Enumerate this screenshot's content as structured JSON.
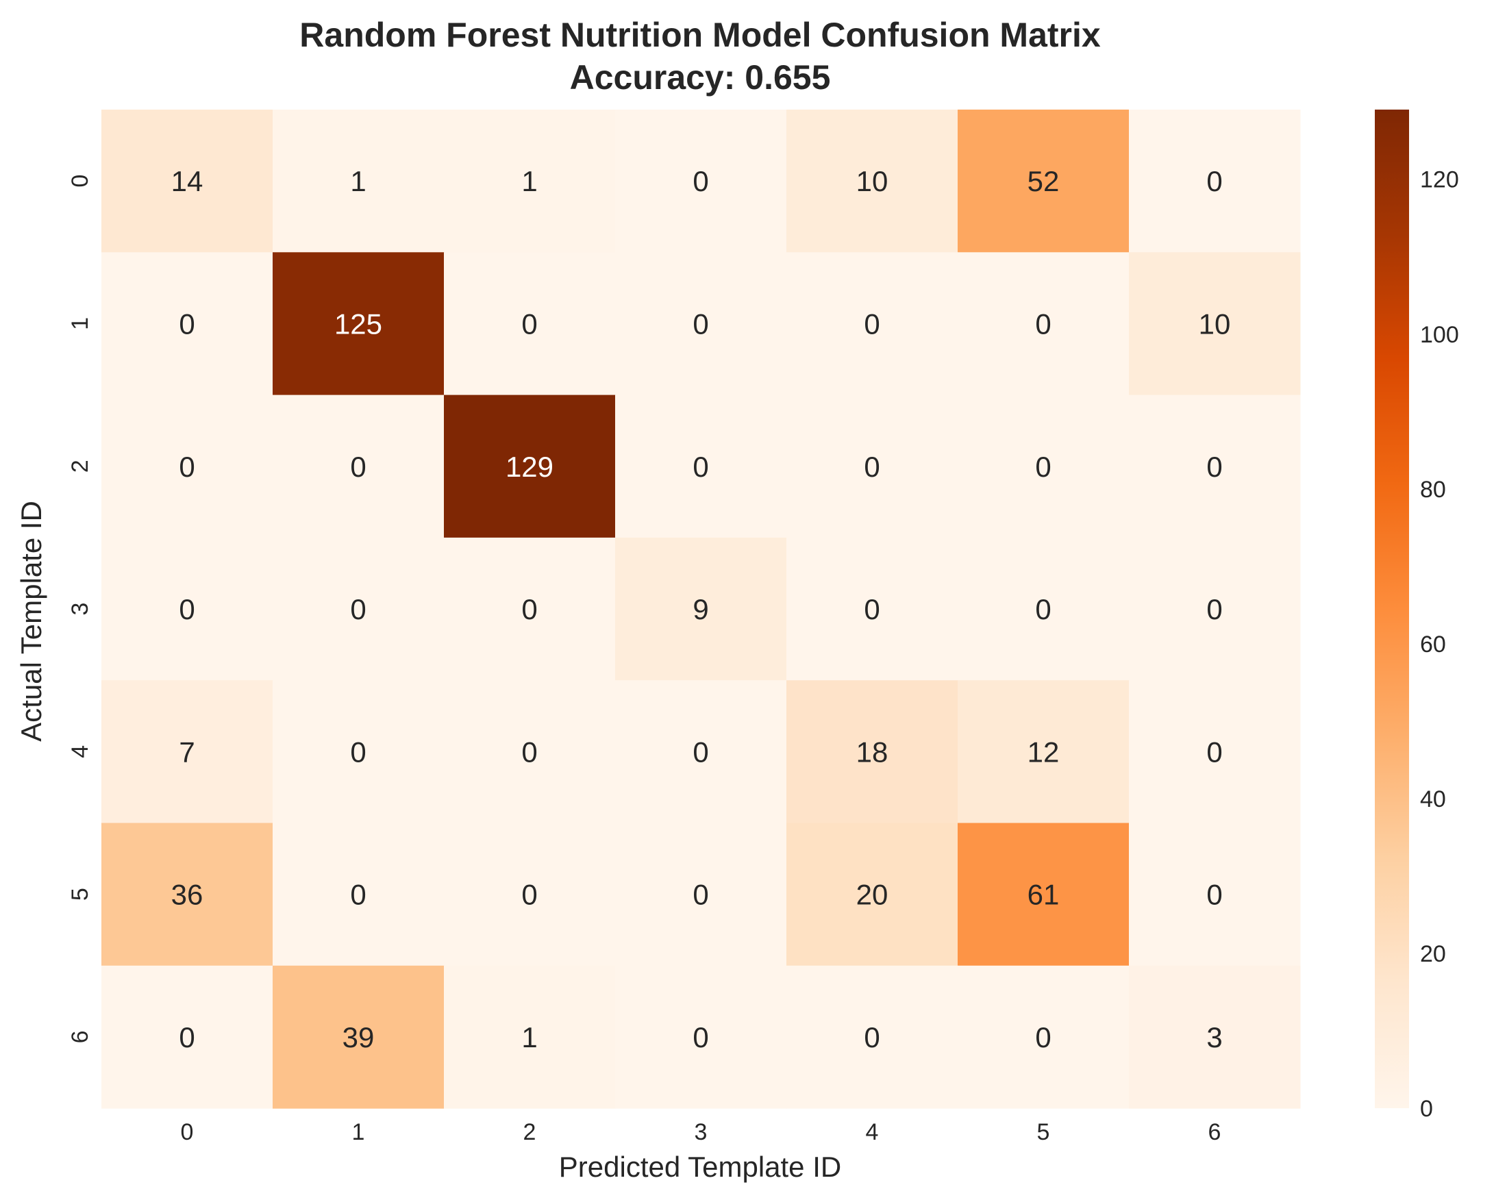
{
  "chart_data": {
    "type": "heatmap",
    "title_line1": "Random Forest Nutrition Model Confusion Matrix",
    "title_line2": "Accuracy: 0.655",
    "xlabel": "Predicted Template ID",
    "ylabel": "Actual Template ID",
    "x_categories": [
      "0",
      "1",
      "2",
      "3",
      "4",
      "5",
      "6"
    ],
    "y_categories": [
      "0",
      "1",
      "2",
      "3",
      "4",
      "5",
      "6"
    ],
    "matrix": [
      [
        14,
        1,
        1,
        0,
        10,
        52,
        0
      ],
      [
        0,
        125,
        0,
        0,
        0,
        0,
        10
      ],
      [
        0,
        0,
        129,
        0,
        0,
        0,
        0
      ],
      [
        0,
        0,
        0,
        9,
        0,
        0,
        0
      ],
      [
        7,
        0,
        0,
        0,
        18,
        12,
        0
      ],
      [
        36,
        0,
        0,
        0,
        20,
        61,
        0
      ],
      [
        0,
        39,
        1,
        0,
        0,
        0,
        3
      ]
    ],
    "colormap": "Oranges",
    "vmin": 0,
    "vmax": 129,
    "colorbar_ticks": [
      "0",
      "20",
      "40",
      "60",
      "80",
      "100",
      "120"
    ],
    "colorbar_tick_values": [
      0,
      20,
      40,
      60,
      80,
      100,
      120
    ],
    "grid": false
  }
}
